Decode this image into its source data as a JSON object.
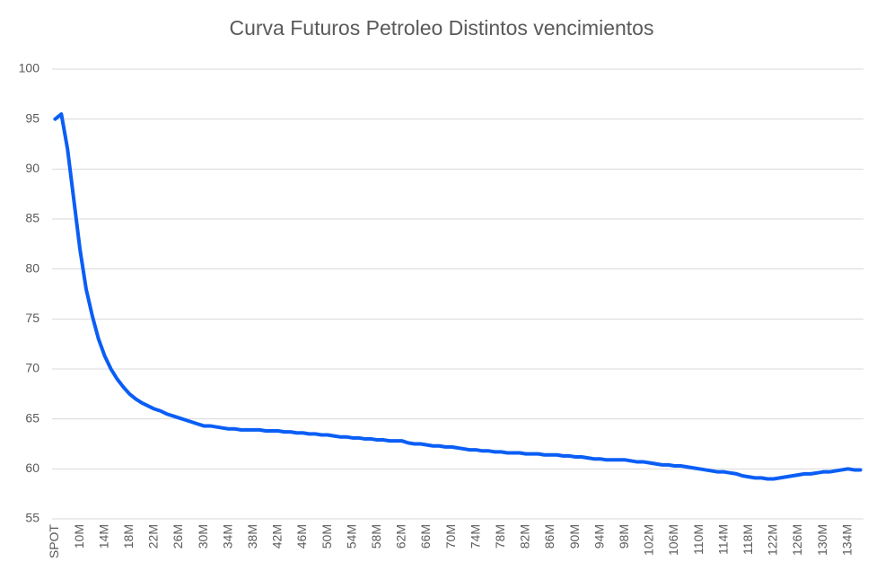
{
  "chart_data": {
    "type": "line",
    "title": "Curva Futuros Petroleo Distintos vencimientos",
    "categories": [
      "SPOT",
      null,
      null,
      null,
      "10M",
      null,
      null,
      null,
      "14M",
      null,
      null,
      null,
      "18M",
      null,
      null,
      null,
      "22M",
      null,
      null,
      null,
      "26M",
      null,
      null,
      null,
      "30M",
      null,
      null,
      null,
      "34M",
      null,
      null,
      null,
      "38M",
      null,
      null,
      null,
      "42M",
      null,
      null,
      null,
      "46M",
      null,
      null,
      null,
      "50M",
      null,
      null,
      null,
      "54M",
      null,
      null,
      null,
      "58M",
      null,
      null,
      null,
      "62M",
      null,
      null,
      null,
      "66M",
      null,
      null,
      null,
      "70M",
      null,
      null,
      null,
      "74M",
      null,
      null,
      null,
      "78M",
      null,
      null,
      null,
      "82M",
      null,
      null,
      null,
      "86M",
      null,
      null,
      null,
      "90M",
      null,
      null,
      null,
      "94M",
      null,
      null,
      null,
      "98M",
      null,
      null,
      null,
      "102M",
      null,
      null,
      null,
      "106M",
      null,
      null,
      null,
      "110M",
      null,
      null,
      null,
      "114M",
      null,
      null,
      null,
      "118M",
      null,
      null,
      null,
      "122M",
      null,
      null,
      null,
      "126M",
      null,
      null,
      null,
      "130M",
      null,
      null,
      null,
      "134M",
      null,
      null
    ],
    "series": [
      {
        "color": "#0a5ef5",
        "values": [
          95,
          95.5,
          92,
          87,
          82,
          78,
          75.3,
          73,
          71.3,
          70,
          69,
          68.2,
          67.5,
          67,
          66.6,
          66.3,
          66,
          65.8,
          65.5,
          65.3,
          65.1,
          64.9,
          64.7,
          64.5,
          64.3,
          64.3,
          64.2,
          64.1,
          64,
          64,
          63.9,
          63.9,
          63.9,
          63.9,
          63.8,
          63.8,
          63.8,
          63.7,
          63.7,
          63.6,
          63.6,
          63.5,
          63.5,
          63.4,
          63.4,
          63.3,
          63.2,
          63.2,
          63.1,
          63.1,
          63.0,
          63.0,
          62.9,
          62.9,
          62.8,
          62.8,
          62.8,
          62.6,
          62.5,
          62.5,
          62.4,
          62.3,
          62.3,
          62.2,
          62.2,
          62.1,
          62.0,
          61.9,
          61.9,
          61.8,
          61.8,
          61.7,
          61.7,
          61.6,
          61.6,
          61.6,
          61.5,
          61.5,
          61.5,
          61.4,
          61.4,
          61.4,
          61.3,
          61.3,
          61.2,
          61.2,
          61.1,
          61.0,
          61.0,
          60.9,
          60.9,
          60.9,
          60.9,
          60.8,
          60.7,
          60.7,
          60.6,
          60.5,
          60.4,
          60.4,
          60.3,
          60.3,
          60.2,
          60.1,
          60.0,
          59.9,
          59.8,
          59.7,
          59.7,
          59.6,
          59.5,
          59.3,
          59.2,
          59.1,
          59.1,
          59.0,
          59.0,
          59.1,
          59.2,
          59.3,
          59.4,
          59.5,
          59.5,
          59.6,
          59.7,
          59.7,
          59.8,
          59.9,
          60.0,
          59.9,
          59.9
        ]
      }
    ],
    "ylim": [
      55,
      100
    ],
    "yticks": [
      55,
      60,
      65,
      70,
      75,
      80,
      85,
      90,
      95,
      100
    ],
    "grid": true
  }
}
